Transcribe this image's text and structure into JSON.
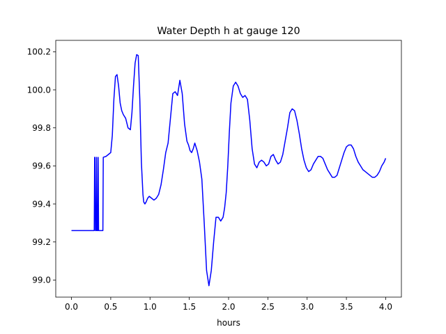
{
  "chart_data": {
    "type": "line",
    "title": "Water Depth h at gauge 120",
    "xlabel": "hours",
    "ylabel": "",
    "xlim": [
      -0.2,
      4.2
    ],
    "ylim": [
      98.91,
      100.26
    ],
    "xticks": [
      0.0,
      0.5,
      1.0,
      1.5,
      2.0,
      2.5,
      3.0,
      3.5,
      4.0
    ],
    "xtick_labels": [
      "0.0",
      "0.5",
      "1.0",
      "1.5",
      "2.0",
      "2.5",
      "3.0",
      "3.5",
      "4.0"
    ],
    "yticks": [
      99.0,
      99.2,
      99.4,
      99.6,
      99.8,
      100.0,
      100.2
    ],
    "ytick_labels": [
      "99.0",
      "99.2",
      "99.4",
      "99.6",
      "99.8",
      "100.0",
      "100.2"
    ],
    "grid": false,
    "series_color": "#0000ff",
    "series": [
      {
        "name": "",
        "x": [
          0.0,
          0.29,
          0.295,
          0.3,
          0.305,
          0.315,
          0.32,
          0.325,
          0.335,
          0.34,
          0.345,
          0.4,
          0.405,
          0.44,
          0.47,
          0.5,
          0.52,
          0.54,
          0.56,
          0.58,
          0.6,
          0.62,
          0.64,
          0.66,
          0.69,
          0.72,
          0.75,
          0.77,
          0.79,
          0.81,
          0.83,
          0.85,
          0.87,
          0.89,
          0.91,
          0.92,
          0.935,
          0.95,
          0.97,
          0.99,
          1.02,
          1.05,
          1.08,
          1.11,
          1.14,
          1.17,
          1.2,
          1.23,
          1.26,
          1.29,
          1.32,
          1.35,
          1.38,
          1.41,
          1.44,
          1.47,
          1.49,
          1.51,
          1.53,
          1.55,
          1.57,
          1.6,
          1.63,
          1.66,
          1.69,
          1.72,
          1.75,
          1.78,
          1.81,
          1.84,
          1.87,
          1.9,
          1.93,
          1.95,
          1.97,
          1.99,
          2.01,
          2.03,
          2.06,
          2.09,
          2.12,
          2.15,
          2.18,
          2.21,
          2.24,
          2.27,
          2.3,
          2.33,
          2.36,
          2.39,
          2.42,
          2.45,
          2.48,
          2.51,
          2.54,
          2.57,
          2.6,
          2.63,
          2.66,
          2.69,
          2.72,
          2.75,
          2.78,
          2.81,
          2.84,
          2.87,
          2.9,
          2.93,
          2.96,
          2.99,
          3.02,
          3.05,
          3.08,
          3.11,
          3.14,
          3.17,
          3.2,
          3.23,
          3.26,
          3.29,
          3.32,
          3.35,
          3.38,
          3.41,
          3.44,
          3.47,
          3.5,
          3.53,
          3.56,
          3.59,
          3.62,
          3.65,
          3.68,
          3.71,
          3.74,
          3.77,
          3.8,
          3.83,
          3.86,
          3.89,
          3.92,
          3.95,
          3.98,
          4.0
        ],
        "y": [
          99.26,
          99.26,
          99.645,
          99.645,
          99.26,
          99.26,
          99.645,
          99.26,
          99.26,
          99.645,
          99.26,
          99.26,
          99.645,
          99.65,
          99.66,
          99.67,
          99.76,
          99.95,
          100.07,
          100.08,
          100.02,
          99.93,
          99.89,
          99.87,
          99.85,
          99.8,
          99.79,
          99.88,
          100.02,
          100.14,
          100.185,
          100.18,
          99.95,
          99.62,
          99.45,
          99.41,
          99.4,
          99.41,
          99.43,
          99.44,
          99.43,
          99.42,
          99.43,
          99.45,
          99.5,
          99.58,
          99.67,
          99.72,
          99.85,
          99.98,
          99.99,
          99.97,
          100.05,
          99.98,
          99.82,
          99.73,
          99.71,
          99.68,
          99.67,
          99.69,
          99.72,
          99.68,
          99.62,
          99.53,
          99.3,
          99.05,
          98.97,
          99.05,
          99.2,
          99.33,
          99.33,
          99.31,
          99.33,
          99.38,
          99.46,
          99.6,
          99.78,
          99.93,
          100.02,
          100.04,
          100.02,
          99.98,
          99.96,
          99.97,
          99.95,
          99.84,
          99.69,
          99.61,
          99.59,
          99.62,
          99.63,
          99.62,
          99.6,
          99.61,
          99.65,
          99.66,
          99.63,
          99.61,
          99.62,
          99.66,
          99.73,
          99.8,
          99.88,
          99.9,
          99.89,
          99.84,
          99.77,
          99.69,
          99.63,
          99.59,
          99.57,
          99.58,
          99.61,
          99.63,
          99.65,
          99.65,
          99.64,
          99.61,
          99.58,
          99.56,
          99.54,
          99.54,
          99.55,
          99.59,
          99.63,
          99.67,
          99.7,
          99.71,
          99.71,
          99.69,
          99.65,
          99.62,
          99.6,
          99.58,
          99.57,
          99.56,
          99.55,
          99.54,
          99.54,
          99.55,
          99.57,
          99.6,
          99.62,
          99.64
        ]
      }
    ]
  }
}
